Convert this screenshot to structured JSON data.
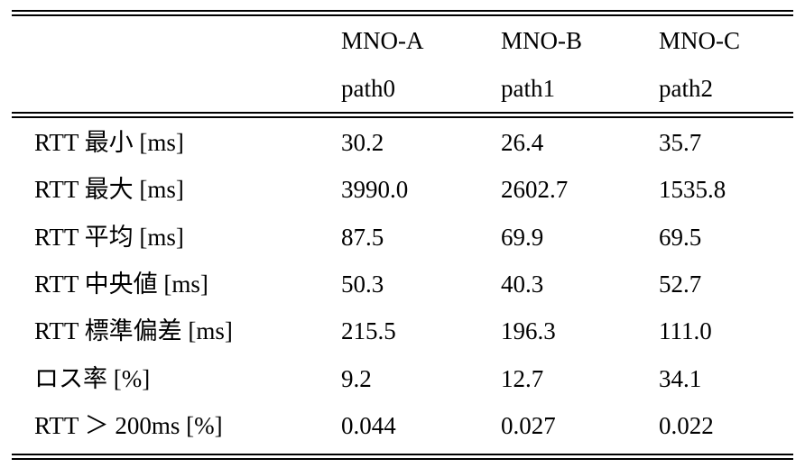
{
  "table": {
    "header": {
      "operators": [
        "MNO-A",
        "MNO-B",
        "MNO-C"
      ],
      "paths": [
        "path0",
        "path1",
        "path2"
      ]
    },
    "rows": [
      {
        "label": "RTT 最小 [ms]",
        "values": [
          "30.2",
          "26.4",
          "35.7"
        ]
      },
      {
        "label": "RTT 最大 [ms]",
        "values": [
          "3990.0",
          "2602.7",
          "1535.8"
        ]
      },
      {
        "label": "RTT 平均 [ms]",
        "values": [
          "87.5",
          "69.9",
          "69.5"
        ]
      },
      {
        "label": "RTT 中央値 [ms]",
        "values": [
          "50.3",
          "40.3",
          "52.7"
        ]
      },
      {
        "label": "RTT 標準偏差 [ms]",
        "values": [
          "215.5",
          "196.3",
          "111.0"
        ]
      },
      {
        "label": "ロス率 [%]",
        "values": [
          "9.2",
          "12.7",
          "34.1"
        ]
      },
      {
        "label": "RTT ＞ 200ms [%]",
        "values": [
          "0.044",
          "0.027",
          "0.022"
        ]
      }
    ]
  }
}
